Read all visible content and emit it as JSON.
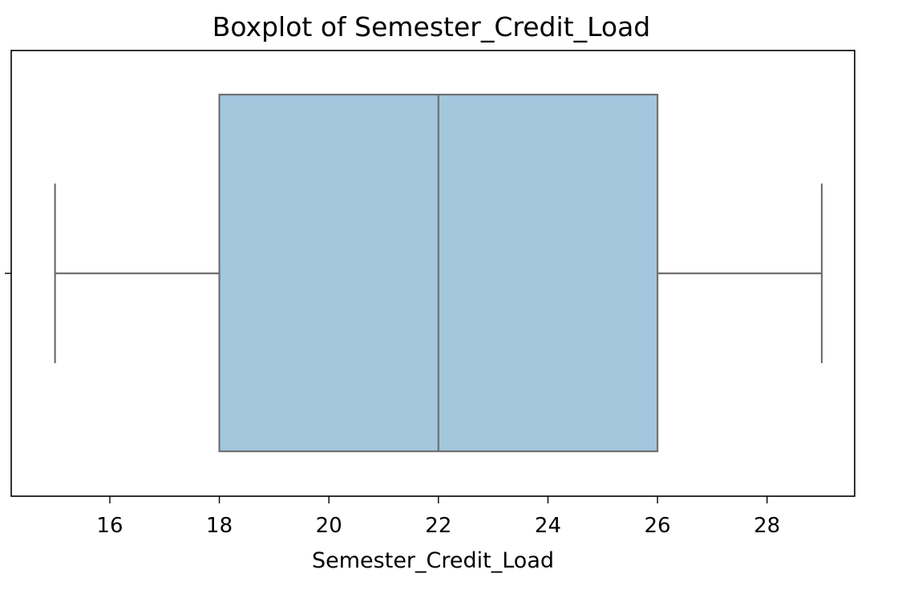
{
  "chart_data": {
    "type": "boxplot",
    "title": "Boxplot of Semester_Credit_Load",
    "xlabel": "Semester_Credit_Load",
    "ylabel": "",
    "orientation": "horizontal",
    "xlim": [
      14.2,
      29.6
    ],
    "xticks": [
      16,
      18,
      20,
      22,
      24,
      26,
      28
    ],
    "box": {
      "min": 15,
      "q1": 18,
      "median": 22,
      "q3": 26,
      "max": 29
    },
    "grid": false,
    "colors": {
      "box_fill": "#a3c7dd",
      "box_edge": "#707070",
      "axes": "#000000"
    }
  }
}
